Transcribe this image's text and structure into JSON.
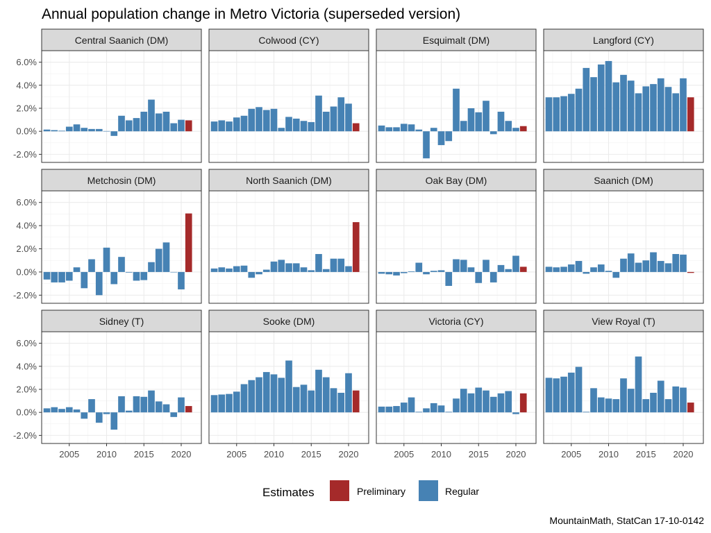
{
  "chart_data": {
    "type": "bar",
    "title": "Annual population change in Metro Victoria (superseded version)",
    "caption": "MountainMath, StatCan 17-10-0142",
    "years": [
      2002,
      2003,
      2004,
      2005,
      2006,
      2007,
      2008,
      2009,
      2010,
      2011,
      2012,
      2013,
      2014,
      2015,
      2016,
      2017,
      2018,
      2019,
      2020,
      2021
    ],
    "x_ticks": [
      2005,
      2010,
      2015,
      2020
    ],
    "x_tick_labels": [
      "2005",
      "2010",
      "2015",
      "2020"
    ],
    "xlim": [
      2001.3,
      2022.7
    ],
    "ylim": [
      -0.027,
      0.07
    ],
    "y_ticks": [
      -0.02,
      0.0,
      0.02,
      0.04,
      0.06
    ],
    "y_tick_labels": [
      "-2.0%",
      "0.0%",
      "2.0%",
      "4.0%",
      "6.0%"
    ],
    "grid": true,
    "legend": {
      "title": "Estimates",
      "position": "bottom",
      "entries": [
        {
          "label": "Preliminary",
          "color": "#a52a2a"
        },
        {
          "label": "Regular",
          "color": "#4682b4"
        }
      ]
    },
    "preliminary_year": 2021,
    "panels": [
      {
        "name": "Central Saanich (DM)",
        "values": [
          0.0015,
          0.001,
          0.0005,
          0.004,
          0.006,
          0.003,
          0.002,
          0.002,
          0.0002,
          -0.004,
          0.0135,
          0.0095,
          0.0115,
          0.017,
          0.0275,
          0.0155,
          0.017,
          0.007,
          0.01,
          0.0095
        ]
      },
      {
        "name": "Colwood (CY)",
        "values": [
          0.0085,
          0.0095,
          0.0085,
          0.012,
          0.0135,
          0.0195,
          0.021,
          0.0185,
          0.0195,
          0.003,
          0.0125,
          0.011,
          0.009,
          0.008,
          0.031,
          0.017,
          0.0215,
          0.0295,
          0.024,
          0.007
        ]
      },
      {
        "name": "Esquimalt (DM)",
        "values": [
          0.005,
          0.0035,
          0.0035,
          0.0065,
          0.006,
          0.0015,
          -0.0235,
          0.003,
          -0.012,
          -0.0085,
          0.037,
          0.009,
          0.02,
          0.0165,
          0.0265,
          -0.0025,
          0.017,
          0.009,
          0.003,
          0.0045
        ]
      },
      {
        "name": "Langford (CY)",
        "values": [
          0.0295,
          0.0295,
          0.0305,
          0.0325,
          0.037,
          0.055,
          0.047,
          0.058,
          0.061,
          0.0425,
          0.049,
          0.044,
          0.033,
          0.039,
          0.041,
          0.046,
          0.0385,
          0.033,
          0.046,
          0.0295
        ]
      },
      {
        "name": "Metchosin (DM)",
        "values": [
          -0.0065,
          -0.009,
          -0.009,
          -0.0075,
          0.004,
          -0.014,
          0.011,
          -0.02,
          0.021,
          -0.0105,
          0.013,
          -0.0005,
          -0.0075,
          -0.007,
          0.0085,
          0.02,
          0.0255,
          0.0,
          -0.015,
          0.0505
        ]
      },
      {
        "name": "North Saanich (DM)",
        "values": [
          0.003,
          0.004,
          0.003,
          0.005,
          0.0055,
          -0.005,
          -0.002,
          0.002,
          0.009,
          0.0105,
          0.0075,
          0.0075,
          0.004,
          0.0015,
          0.0155,
          0.0025,
          0.0115,
          0.0115,
          0.005,
          0.043
        ]
      },
      {
        "name": "Oak Bay (DM)",
        "values": [
          -0.0015,
          -0.002,
          -0.003,
          -0.001,
          0.0005,
          0.008,
          -0.002,
          0.001,
          0.0015,
          -0.012,
          0.011,
          0.0105,
          0.004,
          -0.0095,
          0.0105,
          -0.009,
          0.006,
          0.0025,
          0.014,
          0.0045
        ]
      },
      {
        "name": "Saanich (DM)",
        "values": [
          0.0045,
          0.004,
          0.0045,
          0.0065,
          0.0095,
          -0.0015,
          0.004,
          0.0065,
          0.001,
          -0.005,
          0.0115,
          0.016,
          0.008,
          0.01,
          0.017,
          0.0095,
          0.0075,
          0.0155,
          0.015,
          -0.0008
        ]
      },
      {
        "name": "Sidney (T)",
        "values": [
          0.0035,
          0.0045,
          0.003,
          0.0045,
          0.0025,
          -0.0055,
          0.0115,
          -0.009,
          -0.0015,
          -0.015,
          0.014,
          0.0015,
          0.014,
          0.0135,
          0.019,
          0.0095,
          0.007,
          -0.004,
          0.013,
          0.0055
        ]
      },
      {
        "name": "Sooke (DM)",
        "values": [
          0.015,
          0.0155,
          0.016,
          0.018,
          0.0245,
          0.028,
          0.0305,
          0.035,
          0.033,
          0.03,
          0.045,
          0.022,
          0.024,
          0.019,
          0.037,
          0.0305,
          0.021,
          0.017,
          0.034,
          0.019
        ]
      },
      {
        "name": "Victoria (CY)",
        "values": [
          0.005,
          0.005,
          0.0055,
          0.0085,
          0.013,
          0.0005,
          0.0035,
          0.008,
          0.006,
          0.0005,
          0.012,
          0.0205,
          0.0165,
          0.0215,
          0.019,
          0.0135,
          0.0165,
          0.0185,
          -0.0015,
          0.0165
        ]
      },
      {
        "name": "View Royal (T)",
        "values": [
          0.03,
          0.0295,
          0.031,
          0.0345,
          0.0395,
          0.0005,
          0.021,
          0.013,
          0.012,
          0.0115,
          0.0295,
          0.0205,
          0.0485,
          0.0115,
          0.017,
          0.0275,
          0.0115,
          0.0225,
          0.0215,
          0.0085
        ]
      }
    ]
  }
}
